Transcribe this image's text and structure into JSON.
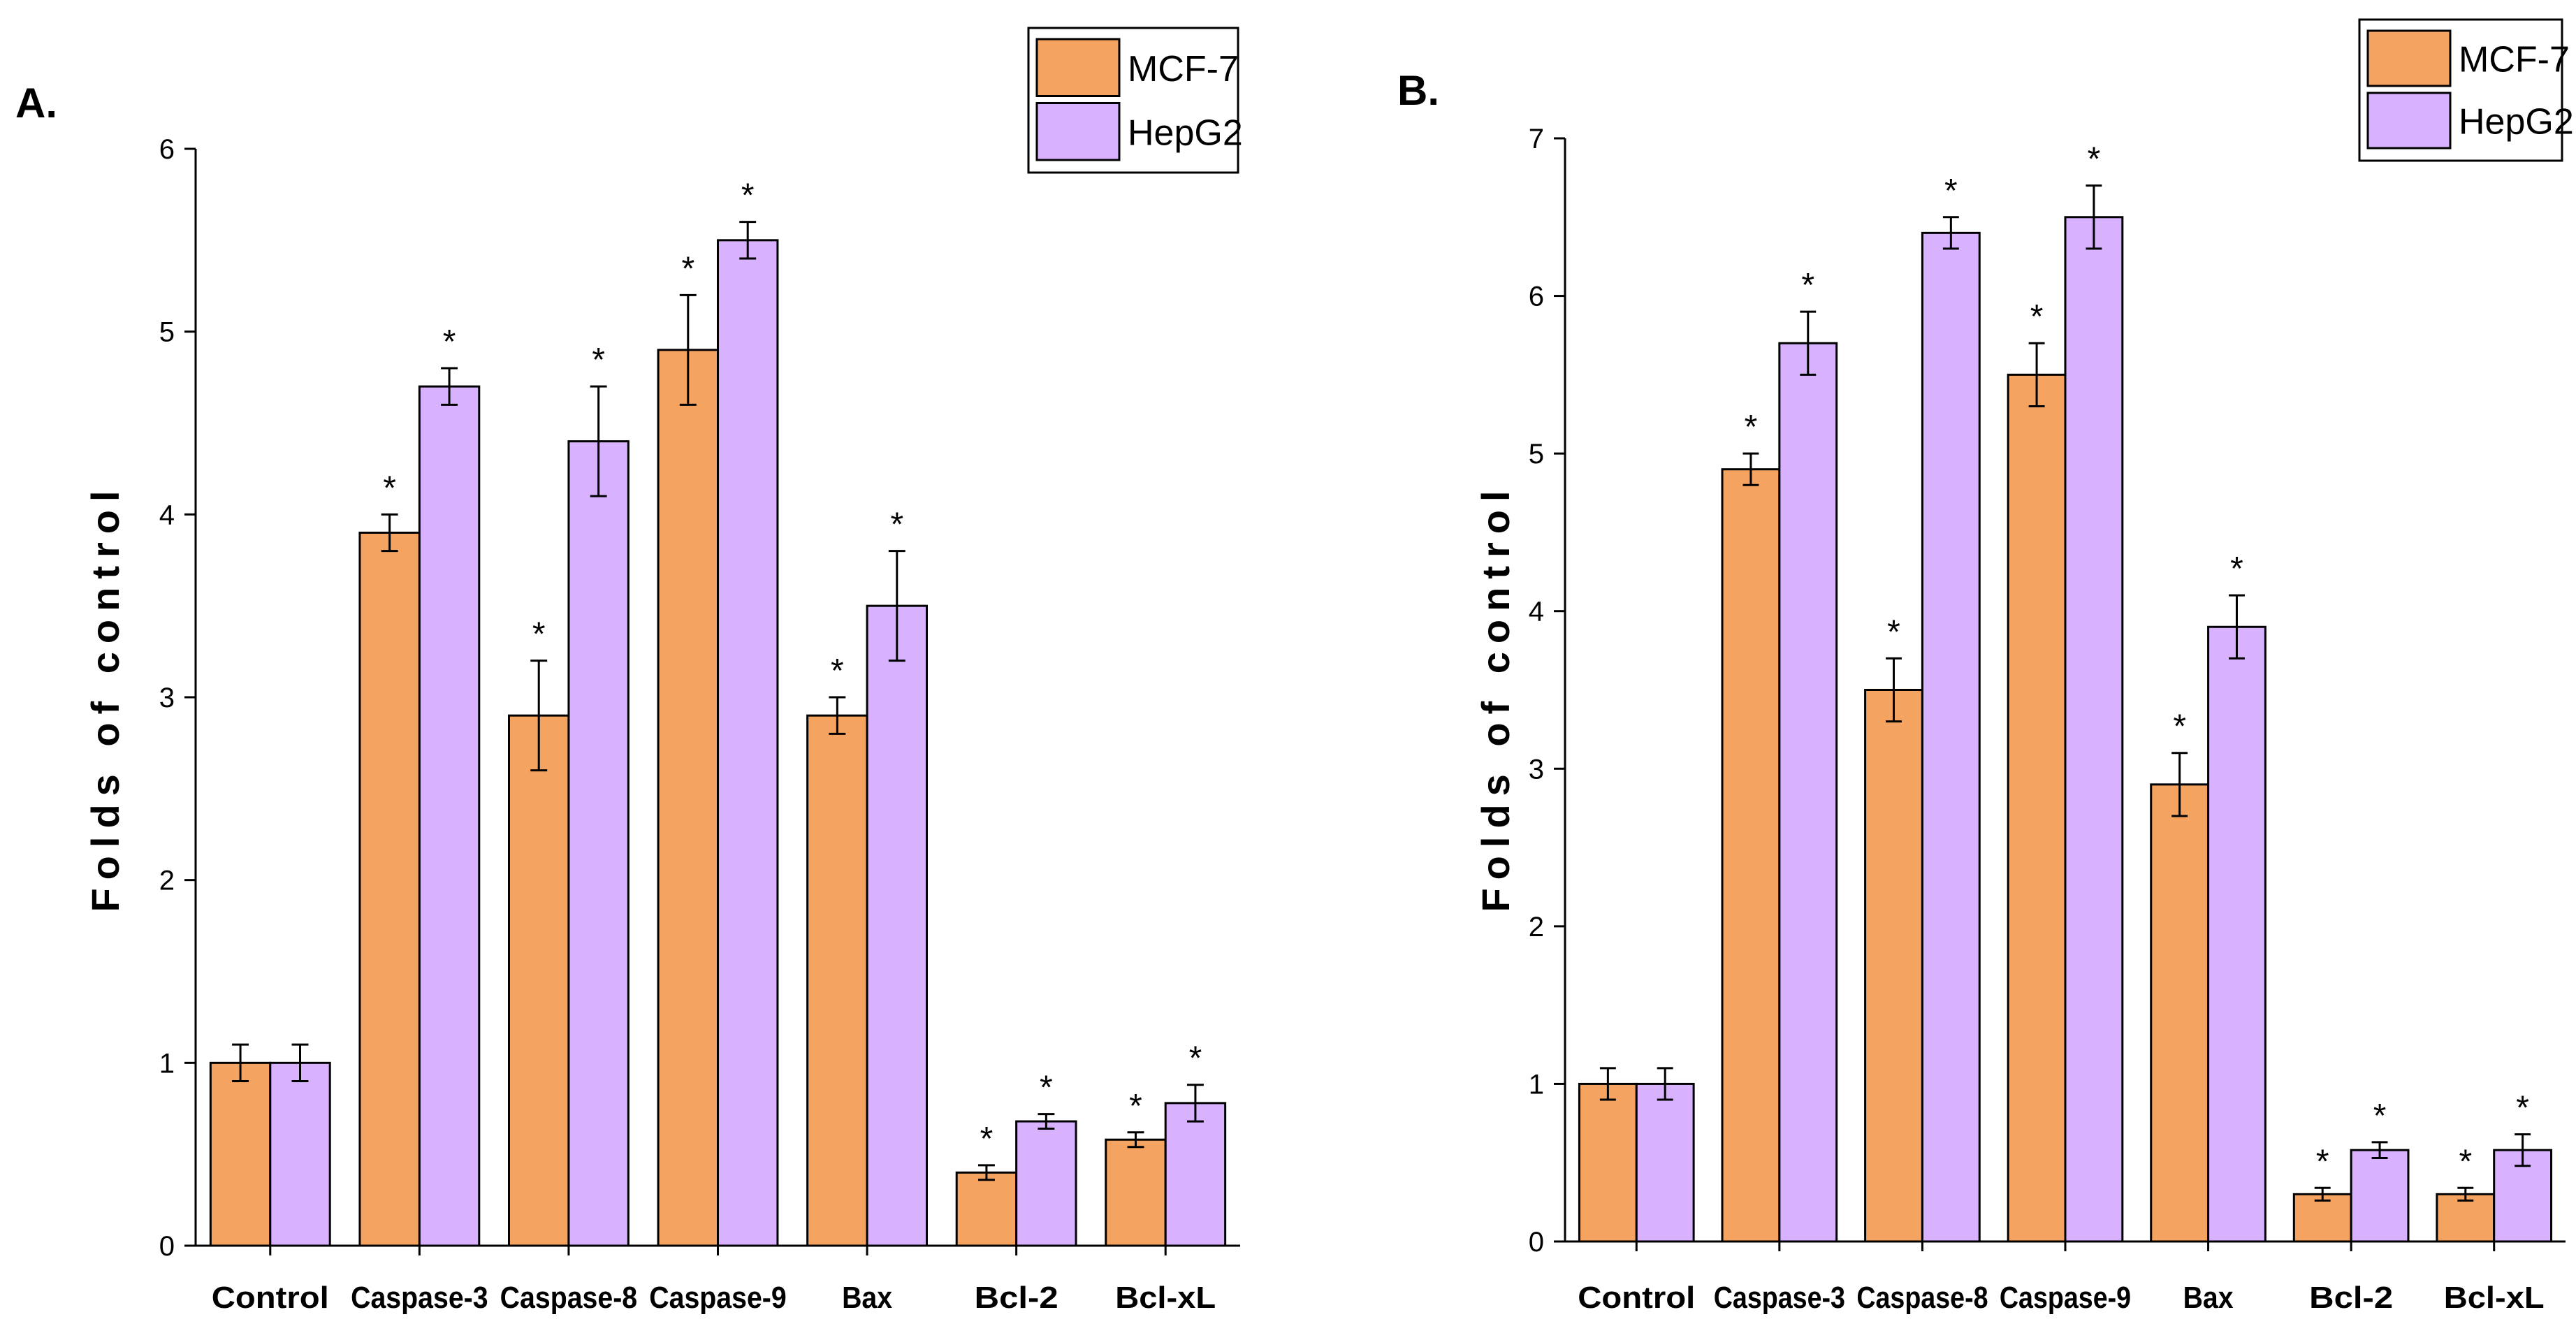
{
  "colors": {
    "mcf7": "#f4a460",
    "hepg2": "#d8b2ff",
    "axis": "#000000",
    "background": "#ffffff"
  },
  "chart_data": [
    {
      "type": "bar",
      "panel_label": "A.",
      "categories": [
        "Control",
        "Caspase-3",
        "Caspase-8",
        "Caspase-9",
        "Bax",
        "Bcl-2",
        "Bcl-xL"
      ],
      "series": [
        {
          "name": "MCF-7",
          "values": [
            1.0,
            3.9,
            2.9,
            4.9,
            2.9,
            0.4,
            0.58
          ],
          "errors": [
            0.1,
            0.1,
            0.3,
            0.3,
            0.1,
            0.04,
            0.04
          ],
          "significant": [
            false,
            true,
            true,
            true,
            true,
            true,
            true
          ]
        },
        {
          "name": "HepG2",
          "values": [
            1.0,
            4.7,
            4.4,
            5.5,
            3.5,
            0.68,
            0.78
          ],
          "errors": [
            0.1,
            0.1,
            0.3,
            0.1,
            0.3,
            0.04,
            0.1
          ],
          "significant": [
            false,
            true,
            true,
            true,
            true,
            true,
            true
          ]
        }
      ],
      "ylabel": "Folds of control",
      "xlabel": "",
      "ylim": [
        0,
        6
      ],
      "yticks": [
        "0",
        "1",
        "2",
        "3",
        "4",
        "5",
        "6"
      ],
      "significance_marker": "*",
      "legend": [
        "MCF-7",
        "HepG2"
      ],
      "legend_position": "top-right"
    },
    {
      "type": "bar",
      "panel_label": "B.",
      "categories": [
        "Control",
        "Caspase-3",
        "Caspase-8",
        "Caspase-9",
        "Bax",
        "Bcl-2",
        "Bcl-xL"
      ],
      "series": [
        {
          "name": "MCF-7",
          "values": [
            1.0,
            4.9,
            3.5,
            5.5,
            2.9,
            0.3,
            0.3
          ],
          "errors": [
            0.1,
            0.1,
            0.2,
            0.2,
            0.2,
            0.04,
            0.04
          ],
          "significant": [
            false,
            true,
            true,
            true,
            true,
            true,
            true
          ]
        },
        {
          "name": "HepG2",
          "values": [
            1.0,
            5.7,
            6.4,
            6.5,
            3.9,
            0.58,
            0.58
          ],
          "errors": [
            0.1,
            0.2,
            0.1,
            0.2,
            0.2,
            0.05,
            0.1
          ],
          "significant": [
            false,
            true,
            true,
            true,
            true,
            true,
            true
          ]
        }
      ],
      "ylabel": "Folds of control",
      "xlabel": "",
      "ylim": [
        0,
        7
      ],
      "yticks": [
        "0",
        "1",
        "2",
        "3",
        "4",
        "5",
        "6",
        "7"
      ],
      "significance_marker": "*",
      "legend": [
        "MCF-7",
        "HepG2"
      ],
      "legend_position": "top-right"
    }
  ]
}
